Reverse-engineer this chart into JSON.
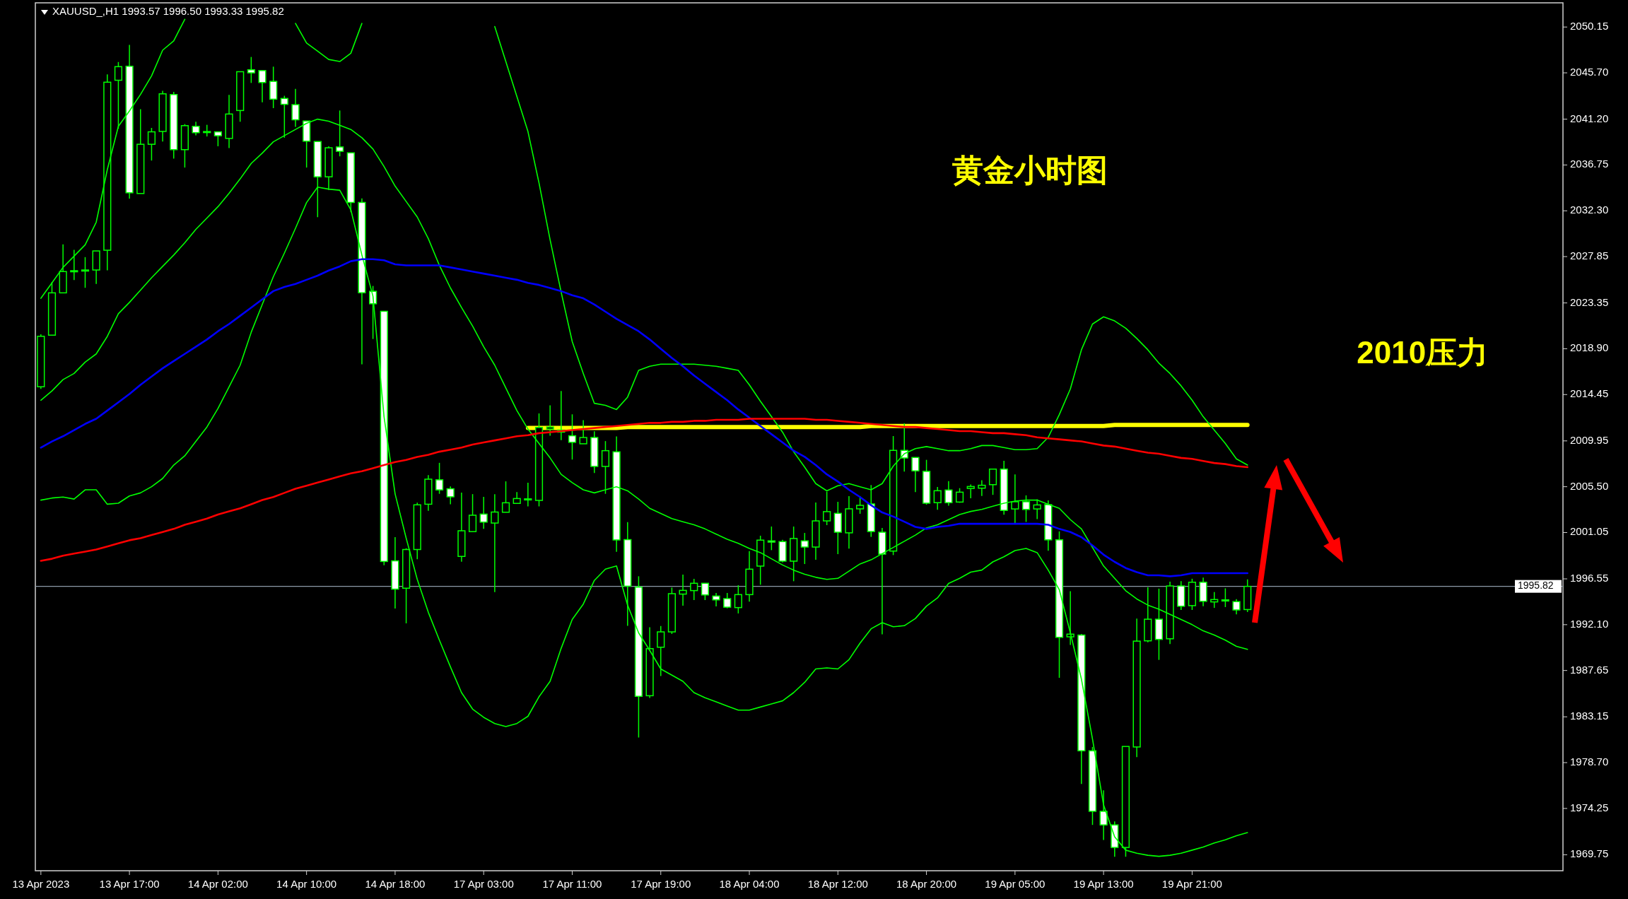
{
  "chart_data": {
    "type": "candlestick",
    "title": "XAUUSD_,H1 1993.57 1996.50 1993.33 1995.82",
    "categories": [
      "13 Apr 2023",
      null,
      null,
      null,
      null,
      null,
      null,
      null,
      "13 Apr 17:00",
      null,
      null,
      null,
      null,
      null,
      null,
      null,
      "14 Apr 02:00",
      null,
      null,
      null,
      null,
      null,
      null,
      null,
      "14 Apr 10:00",
      null,
      null,
      null,
      null,
      null,
      null,
      null,
      "14 Apr 18:00",
      null,
      null,
      null,
      null,
      null,
      null,
      null,
      "17 Apr 03:00",
      null,
      null,
      null,
      null,
      null,
      null,
      null,
      "17 Apr 11:00",
      null,
      null,
      null,
      null,
      null,
      null,
      null,
      "17 Apr 19:00",
      null,
      null,
      null,
      null,
      null,
      null,
      null,
      "18 Apr 04:00",
      null,
      null,
      null,
      null,
      null,
      null,
      null,
      "18 Apr 12:00",
      null,
      null,
      null,
      null,
      null,
      null,
      null,
      "18 Apr 20:00",
      null,
      null,
      null,
      null,
      null,
      null,
      null,
      "19 Apr 05:00",
      null,
      null,
      null,
      null,
      null,
      null,
      null,
      "19 Apr 13:00",
      null,
      null,
      null,
      null,
      null,
      null,
      null,
      "19 Apr 21:00",
      null,
      null,
      null,
      null,
      null
    ],
    "ohlc": [
      [
        2015.21,
        2020.3,
        2015.0,
        2020.11
      ],
      [
        2020.22,
        2025.38,
        2020.22,
        2024.33
      ],
      [
        2024.33,
        2029.04,
        2024.33,
        2026.4
      ],
      [
        2026.48,
        2028.51,
        2025.57,
        2026.48
      ],
      [
        2026.55,
        2027.8,
        2024.82,
        2026.55
      ],
      [
        2026.55,
        2028.4,
        2025.2,
        2028.4
      ],
      [
        2028.47,
        2045.55,
        2026.51,
        2044.79
      ],
      [
        2044.98,
        2046.75,
        2040.27,
        2046.3
      ],
      [
        2046.34,
        2048.41,
        2033.49,
        2034.05
      ],
      [
        2033.98,
        2042.16,
        2033.98,
        2038.76
      ],
      [
        2038.76,
        2040.35,
        2037.18,
        2039.97
      ],
      [
        2040.01,
        2043.96,
        2039.03,
        2043.66
      ],
      [
        2043.59,
        2043.85,
        2037.37,
        2038.24
      ],
      [
        2038.24,
        2040.72,
        2036.5,
        2040.57
      ],
      [
        2040.5,
        2040.95,
        2039.63,
        2039.89
      ],
      [
        2040.0,
        2040.65,
        2039.52,
        2039.97
      ],
      [
        2039.97,
        2039.97,
        2038.57,
        2039.59
      ],
      [
        2039.33,
        2043.55,
        2038.39,
        2041.7
      ],
      [
        2042.04,
        2045.81,
        2040.95,
        2045.81
      ],
      [
        2046.0,
        2047.24,
        2044.72,
        2045.7
      ],
      [
        2045.92,
        2045.92,
        2042.83,
        2044.76
      ],
      [
        2044.87,
        2046.3,
        2042.27,
        2043.14
      ],
      [
        2043.21,
        2043.47,
        2039.4,
        2042.64
      ],
      [
        2042.61,
        2044.15,
        2040.46,
        2041.14
      ],
      [
        2041.02,
        2041.02,
        2036.5,
        2039.06
      ],
      [
        2039.03,
        2039.03,
        2031.68,
        2035.6
      ],
      [
        2035.6,
        2038.57,
        2034.32,
        2038.42
      ],
      [
        2038.5,
        2042.04,
        2037.59,
        2038.08
      ],
      [
        2037.93,
        2037.93,
        2032.17,
        2033.11
      ],
      [
        2033.11,
        2033.5,
        2017.39,
        2024.34
      ],
      [
        2024.48,
        2025.0,
        2019.85,
        2023.27
      ],
      [
        2022.54,
        2022.54,
        1997.87,
        1998.24
      ],
      [
        1998.3,
        2000.61,
        1993.67,
        1995.55
      ],
      [
        1995.64,
        1999.52,
        1992.23,
        1999.4
      ],
      [
        1999.4,
        2003.94,
        1998.45,
        2003.74
      ],
      [
        2003.8,
        2006.63,
        2003.16,
        2006.23
      ],
      [
        2006.17,
        2007.82,
        2004.81,
        2005.19
      ],
      [
        2005.3,
        2005.53,
        2003.8,
        2004.52
      ],
      [
        1998.73,
        2004.93,
        1998.21,
        2001.22
      ],
      [
        2001.14,
        2004.78,
        2001.14,
        2002.73
      ],
      [
        2002.84,
        2004.52,
        2001.4,
        2002.06
      ],
      [
        2001.97,
        2004.78,
        1995.26,
        2003.04
      ],
      [
        2003.02,
        2006.02,
        2003.02,
        2003.94
      ],
      [
        2003.88,
        2004.98,
        2003.88,
        2004.35
      ],
      [
        2004.3,
        2005.88,
        2003.59,
        2004.32
      ],
      [
        2004.17,
        2012.62,
        2003.59,
        2011.26
      ],
      [
        2011.1,
        2013.4,
        2010.45,
        2011.3
      ],
      [
        2011.0,
        2014.79,
        2010.02,
        2010.8
      ],
      [
        2010.45,
        2012.53,
        2008.14,
        2009.81
      ],
      [
        2009.67,
        2011.96,
        2009.67,
        2010.28
      ],
      [
        2010.28,
        2010.88,
        2006.83,
        2007.47
      ],
      [
        2007.47,
        2009.93,
        2004.81,
        2009.0
      ],
      [
        2008.89,
        2010.39,
        1999.17,
        2000.33
      ],
      [
        2000.36,
        2002.06,
        1991.99,
        1995.84
      ],
      [
        1995.75,
        1996.8,
        1981.14,
        1985.14
      ],
      [
        1985.2,
        1991.85,
        1984.99,
        1989.77
      ],
      [
        1989.91,
        1991.97,
        1987.12,
        1991.4
      ],
      [
        1991.4,
        1995.7,
        1991.2,
        1995.11
      ],
      [
        1995.07,
        1996.96,
        1993.94,
        1995.43
      ],
      [
        1995.41,
        1996.55,
        1994.49,
        1996.12
      ],
      [
        1996.12,
        1996.12,
        1994.49,
        1994.99
      ],
      [
        1994.88,
        1995.18,
        1993.87,
        1994.51
      ],
      [
        1994.63,
        1995.18,
        1993.69,
        1993.8
      ],
      [
        1993.76,
        1995.93,
        1993.19,
        1995.02
      ],
      [
        1995.02,
        1999.25,
        1994.33,
        1997.49
      ],
      [
        1997.79,
        2000.74,
        1995.98,
        2000.31
      ],
      [
        2000.24,
        2001.63,
        1999.34,
        2000.12
      ],
      [
        2000.17,
        2000.35,
        1998.15,
        1998.27
      ],
      [
        1998.27,
        2001.63,
        1996.32,
        2000.47
      ],
      [
        2000.24,
        2001.01,
        1997.99,
        1999.64
      ],
      [
        1999.64,
        2003.97,
        1998.41,
        2002.18
      ],
      [
        2002.18,
        2005.02,
        2001.77,
        2003.08
      ],
      [
        2002.91,
        2004.03,
        1998.95,
        2001.08
      ],
      [
        2001.02,
        2004.59,
        1999.48,
        2003.35
      ],
      [
        2003.35,
        2004.59,
        2002.87,
        2003.69
      ],
      [
        2003.83,
        2005.66,
        2000.63,
        2001.15
      ],
      [
        2001.08,
        2001.5,
        1991.17,
        1998.95
      ],
      [
        1999.25,
        2010.42,
        1998.86,
        2009.03
      ],
      [
        2009.03,
        2011.66,
        2006.97,
        2008.29
      ],
      [
        2008.34,
        2008.34,
        2004.97,
        2007.04
      ],
      [
        2006.99,
        2008.11,
        2003.76,
        2003.9
      ],
      [
        2003.95,
        2005.48,
        2003.26,
        2005.11
      ],
      [
        2005.18,
        2006.05,
        2003.65,
        2003.95
      ],
      [
        2004.01,
        2005.36,
        2003.94,
        2004.97
      ],
      [
        2005.33,
        2005.72,
        2004.38,
        2005.52
      ],
      [
        2005.36,
        2006.12,
        2004.6,
        2005.64
      ],
      [
        2005.7,
        2007.21,
        2004.71,
        2007.21
      ],
      [
        2007.21,
        2008.02,
        2002.78,
        2003.2
      ],
      [
        2003.34,
        2006.7,
        2001.94,
        2004.04
      ],
      [
        2004.04,
        2004.66,
        2002.08,
        2003.29
      ],
      [
        2003.34,
        2004.27,
        2002.36,
        2003.73
      ],
      [
        2003.76,
        2004.18,
        1999.28,
        2000.34
      ],
      [
        2000.34,
        2001.16,
        1986.94,
        1990.87
      ],
      [
        1990.92,
        1995.35,
        1990.14,
        1991.18
      ],
      [
        1991.09,
        1991.2,
        1976.63,
        1979.85
      ],
      [
        1979.85,
        1980.22,
        1972.65,
        1973.97
      ],
      [
        1973.97,
        1976.01,
        1971.19,
        1972.65
      ],
      [
        1972.65,
        1972.98,
        1969.56,
        1970.46
      ],
      [
        1970.46,
        1980.27,
        1969.56,
        1980.27
      ],
      [
        1980.22,
        1992.69,
        1979.24,
        1990.5
      ],
      [
        1990.53,
        1995.72,
        1990.39,
        1992.63
      ],
      [
        1992.63,
        1995.6,
        1988.68,
        1990.67
      ],
      [
        1990.73,
        1996.28,
        1990.22,
        1995.86
      ],
      [
        1995.86,
        1996.33,
        1993.53,
        1993.89
      ],
      [
        1993.95,
        1996.56,
        1993.53,
        1996.22
      ],
      [
        1996.22,
        1996.67,
        1993.89,
        1994.37
      ],
      [
        1994.31,
        1995.27,
        1993.73,
        1994.54
      ],
      [
        1994.51,
        1995.63,
        1993.81,
        1994.4
      ],
      [
        1994.34,
        1994.57,
        1993.11,
        1993.53
      ],
      [
        1993.57,
        1996.5,
        1993.33,
        1995.82
      ]
    ],
    "series": [
      {
        "type": "line",
        "color": "#00ff00",
        "values": [
          2023.8,
          2025.3,
          2026.8,
          2027.9,
          2029.0,
          2031.2,
          2036.3,
          2040.5,
          2042.0,
          2043.6,
          2045.4,
          2047.9,
          2048.8,
          2050.9,
          null,
          null,
          null,
          null,
          null,
          null,
          null,
          null,
          null,
          2050.5,
          2048.6,
          2047.8,
          2047.0,
          2046.8,
          2047.6,
          2050.5,
          null,
          null,
          null,
          null,
          null,
          null,
          null,
          null,
          null,
          null,
          null,
          2050.2,
          2046.8,
          2043.4,
          2040.0,
          2035.0,
          2029.5,
          2024.4,
          2019.6,
          2016.5,
          2013.6,
          2013.4,
          2013.0,
          2014.2,
          2016.8,
          2017.2,
          2017.4,
          2017.4,
          2017.4,
          2017.4,
          2017.3,
          2017.2,
          2017.0,
          2016.8,
          2015.4,
          2013.8,
          2012.3,
          2010.8,
          2008.9,
          2007.4,
          2005.8,
          2005.1,
          2005.6,
          2005.8,
          2005.5,
          2005.2,
          2005.8,
          2007.5,
          2008.7,
          2009.2,
          2009.4,
          2009.2,
          2009.0,
          2009.0,
          2009.2,
          2009.5,
          2009.5,
          2009.3,
          2009.1,
          2009.1,
          2009.2,
          2010.3,
          2012.5,
          2015.0,
          2018.8,
          2021.3,
          2022.0,
          2021.6,
          2020.9,
          2019.9,
          2018.8,
          2017.5,
          2016.5,
          2015.3,
          2013.9,
          2012.3,
          2011.0,
          2009.7,
          2008.2,
          2007.6
        ]
      },
      {
        "type": "line",
        "color": "#00ff00",
        "values": [
          2013.9,
          2014.8,
          2015.9,
          2016.5,
          2017.6,
          2018.4,
          2020.1,
          2022.3,
          2023.4,
          2024.6,
          2025.8,
          2026.9,
          2028.0,
          2029.2,
          2030.5,
          2031.6,
          2032.7,
          2034.0,
          2035.4,
          2036.9,
          2037.9,
          2039.0,
          2039.6,
          2040.2,
          2040.8,
          2041.2,
          2041.0,
          2040.6,
          2040.2,
          2039.4,
          2038.3,
          2036.6,
          2034.7,
          2033.2,
          2031.7,
          2029.6,
          2027.0,
          2024.8,
          2022.9,
          2021.1,
          2019.1,
          2017.3,
          2015.1,
          2012.9,
          2011.1,
          2009.7,
          2008.3,
          2006.7,
          2005.9,
          2005.2,
          2004.9,
          2005.2,
          2005.5,
          2005.1,
          2004.3,
          2003.4,
          2002.9,
          2002.4,
          2002.1,
          2001.8,
          2001.4,
          2000.9,
          2000.4,
          2000.0,
          1999.5,
          1999.1,
          1998.5,
          1997.9,
          1997.4,
          1997.0,
          1996.7,
          1996.5,
          1996.6,
          1997.3,
          1998.0,
          1998.4,
          1999.0,
          1999.6,
          2000.2,
          2000.8,
          2001.5,
          2001.8,
          2002.3,
          2002.8,
          2003.1,
          2003.3,
          2003.6,
          2003.9,
          2004.1,
          2004.2,
          2004.2,
          2003.8,
          2003.4,
          2002.3,
          2001.4,
          1999.6,
          1997.8,
          1996.6,
          1995.4,
          1994.6,
          1994.0,
          1993.6,
          1993.1,
          1992.6,
          1992.1,
          1991.5,
          1991.1,
          1990.6,
          1990.0,
          1989.7
        ]
      },
      {
        "type": "line",
        "color": "#00ff00",
        "values": [
          2004.2,
          2004.4,
          2004.5,
          2004.3,
          2005.2,
          2005.2,
          2003.8,
          2003.9,
          2004.6,
          2004.9,
          2005.5,
          2006.3,
          2007.6,
          2008.5,
          2009.9,
          2011.3,
          2013.1,
          2015.2,
          2017.3,
          2020.5,
          2023.2,
          2025.9,
          2028.2,
          2030.6,
          2033.1,
          2034.6,
          2034.4,
          2034.3,
          2032.4,
          2028.0,
          2024.0,
          2012.3,
          2004.8,
          2000.5,
          1996.5,
          1993.3,
          1990.6,
          1988.0,
          1985.5,
          1983.9,
          1983.1,
          1982.5,
          1982.2,
          1982.5,
          1983.2,
          1985.1,
          1986.6,
          1989.8,
          1992.6,
          1994.1,
          1996.4,
          1997.5,
          1997.8,
          1994.0,
          1991.3,
          1989.6,
          1987.8,
          1987.2,
          1986.6,
          1985.5,
          1985.0,
          1984.6,
          1984.2,
          1983.8,
          1983.8,
          1984.1,
          1984.4,
          1984.7,
          1985.5,
          1986.5,
          1987.8,
          1987.9,
          1987.8,
          1988.7,
          1990.3,
          1991.7,
          1992.3,
          1991.9,
          1992.0,
          1992.7,
          1993.9,
          1994.7,
          1996.1,
          1996.6,
          1997.2,
          1997.4,
          1998.2,
          1998.7,
          1999.3,
          1999.5,
          1999.1,
          1997.4,
          1995.5,
          1991.3,
          1986.8,
          1981.0,
          1974.6,
          1971.5,
          1970.2,
          1969.9,
          1969.7,
          1969.6,
          1969.7,
          1969.9,
          1970.2,
          1970.5,
          1970.9,
          1971.2,
          1971.6,
          1971.9
        ]
      },
      {
        "type": "line",
        "color": "#0000ff",
        "values": [
          2009.3,
          2009.9,
          2010.4,
          2011.0,
          2011.6,
          2012.1,
          2012.9,
          2013.7,
          2014.5,
          2015.4,
          2016.2,
          2017.0,
          2017.7,
          2018.4,
          2019.1,
          2019.8,
          2020.6,
          2021.3,
          2022.1,
          2022.9,
          2023.7,
          2024.5,
          2024.9,
          2025.2,
          2025.6,
          2026.0,
          2026.5,
          2026.9,
          2027.4,
          2027.6,
          2027.6,
          2027.5,
          2027.1,
          2027.0,
          2027.0,
          2027.0,
          2027.0,
          2026.8,
          2026.6,
          2026.4,
          2026.2,
          2026.0,
          2025.8,
          2025.6,
          2025.3,
          2025.1,
          2024.8,
          2024.5,
          2024.1,
          2023.8,
          2023.2,
          2022.5,
          2021.8,
          2021.2,
          2020.6,
          2019.8,
          2018.9,
          2018.0,
          2017.2,
          2016.3,
          2015.5,
          2014.7,
          2013.9,
          2013.0,
          2012.2,
          2011.4,
          2010.6,
          2009.8,
          2009.0,
          2008.4,
          2007.6,
          2006.7,
          2006.0,
          2005.2,
          2004.5,
          2003.7,
          2003.0,
          2002.6,
          2002.1,
          2001.6,
          2001.4,
          2001.6,
          2001.7,
          2001.9,
          2001.9,
          2001.9,
          2001.9,
          2001.9,
          2001.9,
          2001.9,
          2001.9,
          2001.8,
          2001.4,
          2001.1,
          2000.6,
          1999.8,
          1998.9,
          1998.2,
          1997.6,
          1997.2,
          1996.9,
          1996.9,
          1996.8,
          1996.9,
          1997.1,
          1997.1,
          1997.1,
          1997.1,
          1997.1,
          1997.1
        ]
      },
      {
        "type": "line",
        "color": "#ff0000",
        "values": [
          1998.3,
          1998.5,
          1998.8,
          1999.0,
          1999.2,
          1999.4,
          1999.7,
          2000.0,
          2000.3,
          2000.5,
          2000.8,
          2001.1,
          2001.4,
          2001.8,
          2002.1,
          2002.4,
          2002.8,
          2003.1,
          2003.4,
          2003.8,
          2004.2,
          2004.5,
          2004.9,
          2005.3,
          2005.6,
          2005.9,
          2006.2,
          2006.5,
          2006.8,
          2007.0,
          2007.3,
          2007.6,
          2007.9,
          2008.1,
          2008.4,
          2008.6,
          2008.9,
          2009.1,
          2009.3,
          2009.6,
          2009.8,
          2010.0,
          2010.2,
          2010.4,
          2010.5,
          2010.7,
          2010.8,
          2010.9,
          2011.0,
          2011.1,
          2011.2,
          2011.3,
          2011.4,
          2011.5,
          2011.6,
          2011.7,
          2011.7,
          2011.8,
          2011.8,
          2011.9,
          2011.9,
          2012.0,
          2012.0,
          2012.0,
          2012.1,
          2012.1,
          2012.1,
          2012.1,
          2012.1,
          2012.1,
          2012.0,
          2012.0,
          2011.9,
          2011.8,
          2011.7,
          2011.6,
          2011.5,
          2011.4,
          2011.3,
          2011.3,
          2011.2,
          2011.1,
          2011.0,
          2010.9,
          2010.9,
          2010.8,
          2010.7,
          2010.7,
          2010.6,
          2010.5,
          2010.3,
          2010.2,
          2010.1,
          2010.0,
          2009.9,
          2009.7,
          2009.5,
          2009.4,
          2009.2,
          2009.0,
          2008.8,
          2008.7,
          2008.5,
          2008.3,
          2008.2,
          2008.0,
          2007.8,
          2007.7,
          2007.5,
          2007.4
        ]
      },
      {
        "type": "line",
        "color": "#ffff00",
        "values": [
          null,
          null,
          null,
          null,
          null,
          null,
          null,
          null,
          null,
          null,
          null,
          null,
          null,
          null,
          null,
          null,
          null,
          null,
          null,
          null,
          null,
          null,
          null,
          null,
          null,
          null,
          null,
          null,
          null,
          null,
          null,
          null,
          null,
          null,
          null,
          null,
          null,
          null,
          null,
          null,
          null,
          null,
          null,
          null,
          2011.2,
          2011.2,
          2011.2,
          2011.2,
          2011.2,
          2011.2,
          2011.2,
          2011.2,
          2011.2,
          2011.3,
          2011.3,
          2011.3,
          2011.3,
          2011.3,
          2011.3,
          2011.3,
          2011.3,
          2011.3,
          2011.3,
          2011.3,
          2011.3,
          2011.3,
          2011.3,
          2011.3,
          2011.3,
          2011.3,
          2011.3,
          2011.3,
          2011.3,
          2011.3,
          2011.3,
          2011.4,
          2011.4,
          2011.4,
          2011.4,
          2011.4,
          2011.4,
          2011.4,
          2011.4,
          2011.4,
          2011.4,
          2011.4,
          2011.4,
          2011.4,
          2011.4,
          2011.4,
          2011.4,
          2011.4,
          2011.4,
          2011.4,
          2011.4,
          2011.4,
          2011.4,
          2011.5,
          2011.5,
          2011.5,
          2011.5,
          2011.5,
          2011.5,
          2011.5,
          2011.5,
          2011.5,
          2011.5,
          2011.5,
          2011.5,
          2011.5
        ]
      }
    ],
    "ylim": [
      1968.2,
      2052.5
    ],
    "yticks": [
      2050.15,
      {
        "value": 2045.7,
        "label": "2045.70"
      },
      {
        "value": 2041.2,
        "label": "2041.20"
      },
      2036.75,
      {
        "value": 2032.3,
        "label": "2032.30"
      },
      2027.85,
      2023.35,
      {
        "value": 2018.9,
        "label": "2018.90"
      },
      2014.45,
      2009.95,
      {
        "value": 2005.5,
        "label": "2005.50"
      },
      2001.05,
      1996.55,
      {
        "value": 1992.1,
        "label": "1992.10"
      },
      1987.65,
      1983.15,
      {
        "value": 1978.7,
        "label": "1978.70"
      },
      1974.25,
      1969.75
    ],
    "ref_lines": [
      {
        "axis": "y",
        "value": 1995.82,
        "label": "1995.82",
        "color": "#8c9aa8"
      }
    ],
    "annotations": [
      "黄金小时图",
      "2010压力"
    ]
  }
}
